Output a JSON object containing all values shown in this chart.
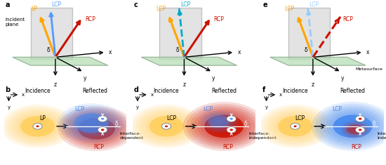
{
  "fig_width": 5.5,
  "fig_height": 2.35,
  "dpi": 100,
  "bg_color": "#ffffff",
  "colors": {
    "orange": "#FFA500",
    "blue": "#5599FF",
    "red": "#CC1100",
    "cyan": "#00AACC",
    "lightblue": "#99CCFF",
    "yellow": "#FFD060",
    "gray_plane": "#CCCCCC",
    "green_plane": "#B8DEB8",
    "green_edge": "#88AA88"
  },
  "panels_top": {
    "a": {
      "incident_label": "Incident\nplane",
      "arrow_orange": {
        "label": "LP",
        "color": "#FFA500",
        "dashed": false
      },
      "arrow_blue": {
        "label": "LCP",
        "color": "#5599FF",
        "dashed": false
      },
      "arrow_red": {
        "label": "RCP",
        "color": "#CC1100",
        "dashed": false
      }
    },
    "c": {
      "arrow_orange": {
        "label": "LCP",
        "color": "#FFA500",
        "dashed": false
      },
      "arrow_blue": {
        "label": "LCP",
        "color": "#00AACC",
        "dashed": true
      },
      "arrow_red": {
        "label": "RCP",
        "color": "#CC1100",
        "dashed": false
      }
    },
    "e": {
      "metasurface_label": "Metasurface",
      "arrow_orange": {
        "label": "LCP",
        "color": "#FFA500",
        "dashed": false
      },
      "arrow_blue": {
        "label": "LCP",
        "color": "#99CCFF",
        "dashed": true
      },
      "arrow_red": {
        "label": "RCP",
        "color": "#CC1100",
        "dashed": true
      }
    }
  },
  "panels_bottom": {
    "b": {
      "inc_label": "LP",
      "ref_note": "Interface-\ndependent",
      "blue_dominant": true,
      "red_dominant": true,
      "dot_upper_color": "#5599FF",
      "dot_lower_color": "#CC1100"
    },
    "d": {
      "inc_label": "LCP",
      "ref_note": "Interface-\nindependent",
      "blue_dominant": false,
      "red_dominant": true,
      "dot_upper_color": "#5599FF",
      "dot_lower_color": "#CC1100"
    },
    "f": {
      "inc_label": "LCP",
      "ref_note": "Interface-\nindependent",
      "blue_dominant": true,
      "red_dominant": false,
      "dot_upper_color": "#CC1100",
      "dot_lower_color": "#CC1100"
    }
  }
}
